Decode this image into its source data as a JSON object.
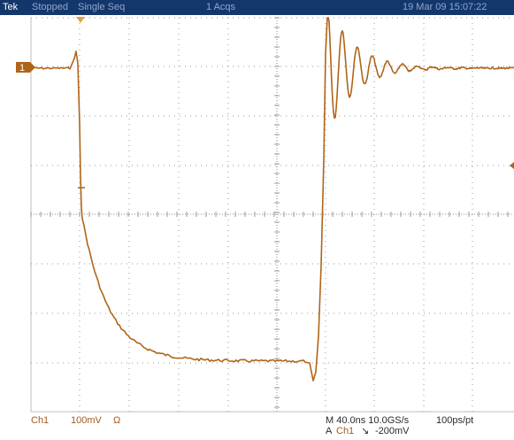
{
  "topbar": {
    "brand": "Tek",
    "status": "Stopped",
    "mode": "Single Seq",
    "acqs": "1 Acqs",
    "datetime": "19 Mar 09 15:07:22"
  },
  "channel": {
    "marker": "1",
    "name": "Ch1",
    "scale": "100mV",
    "coupling": "Ω"
  },
  "timebase": {
    "readout": "M 40.0ns 10.0GS/s",
    "resolution": "100ps/pt"
  },
  "trigger": {
    "prefix": "A",
    "source": "Ch1",
    "slope": "↘",
    "level": "-200mV"
  },
  "colors": {
    "trace": "#b06418",
    "grid": "#9a9a9a",
    "topbar": "#14376b",
    "trigger_marker": "#e8a23a"
  }
}
